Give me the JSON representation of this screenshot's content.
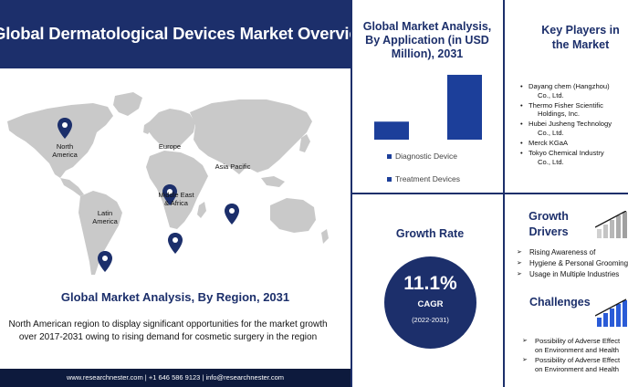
{
  "header": {
    "title": "Global Dermatological Devices Market Overview"
  },
  "map": {
    "regions": [
      {
        "label_line1": "North",
        "label_line2": "America"
      },
      {
        "label_line1": "Europe",
        "label_line2": ""
      },
      {
        "label_line1": "Asia Pacific",
        "label_line2": ""
      },
      {
        "label_line1": "Middle East",
        "label_line2": "& Africa"
      },
      {
        "label_line1": "Latin",
        "label_line2": "America"
      }
    ],
    "pin_color": "#1c2f6b",
    "land_color": "#c9c9c9"
  },
  "region_section": {
    "title": "Global Market Analysis, By Region, 2031",
    "description_line1": "North American region to display significant opportunities for the market growth",
    "description_line2": "over 2017-2031  owing to  rising demand for cosmetic surgery in the region"
  },
  "footer": {
    "text": "www.researchnester.com  | +1 646 586 9123 | info@researchnester.com"
  },
  "chart_data": {
    "type": "bar",
    "title": "Global Market Analysis, By Application (in USD Million), 2031",
    "categories": [
      "Diagnostic Device",
      "Treatment Devices"
    ],
    "values": [
      20,
      72
    ],
    "ylim": [
      0,
      75
    ],
    "bar_color": "#1c3f9a",
    "title_line1": "Global Market Analysis,",
    "title_line2": "By Application (in USD",
    "title_line3": "Million), 2031"
  },
  "key_players": {
    "title_line1": "Key Players in",
    "title_line2": "the Market",
    "items": [
      {
        "line1": "Dayang chem (Hangzhou)",
        "line2": "Co., Ltd."
      },
      {
        "line1": "Thermo Fisher Scientific",
        "line2": "Holdings, Inc."
      },
      {
        "line1": "Hubei Jusheng Technology",
        "line2": "Co., Ltd."
      },
      {
        "line1": "Merck KGaA",
        "line2": ""
      },
      {
        "line1": "Tokyo Chemical Industry",
        "line2": "Co., Ltd."
      }
    ]
  },
  "growth_rate": {
    "title": "Growth Rate",
    "value": "11.1%",
    "label": "CAGR",
    "period": "(2022-2031)"
  },
  "growth_drivers": {
    "title_line1": "Growth",
    "title_line2": "Drivers",
    "items": [
      "Rising Awareness of",
      "Hygiene & Personal Grooming",
      "Usage in Multiple Industries"
    ]
  },
  "challenges": {
    "title": "Challenges",
    "items": [
      {
        "line1": "Possibility of Adverse Effect",
        "line2": "on Environment  and Health"
      },
      {
        "line1": "Possibility of Adverse Effect",
        "line2": "on Environment  and Health"
      }
    ]
  }
}
